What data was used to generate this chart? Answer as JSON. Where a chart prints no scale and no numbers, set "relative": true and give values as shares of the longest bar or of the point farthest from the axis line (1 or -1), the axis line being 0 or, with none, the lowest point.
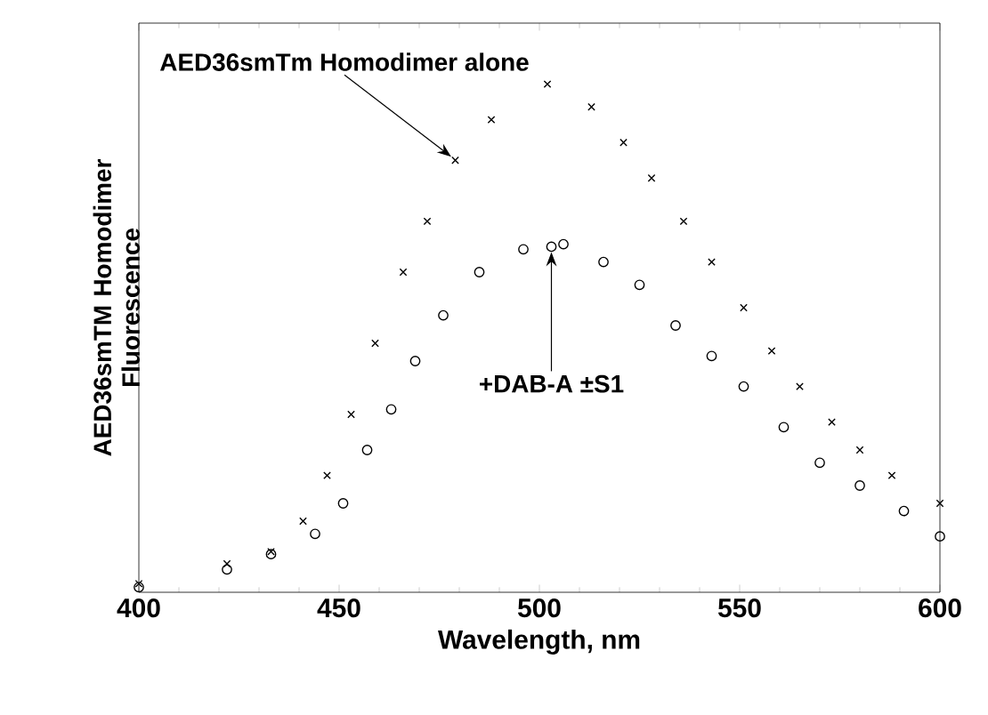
{
  "chart_data": {
    "type": "scatter",
    "xlabel": "Wavelength,  nm",
    "ylabel": "AED36smTM  Homodimer Fluorescence",
    "relative": true,
    "xlim": [
      400,
      600
    ],
    "xticks": [
      400,
      450,
      500,
      550,
      600
    ],
    "series": [
      {
        "name": null,
        "color": "#000000",
        "marker": "cross",
        "x": [
          400,
          422,
          433,
          441,
          447,
          453,
          459,
          466,
          472,
          479,
          488,
          502,
          513,
          521,
          528,
          536,
          543,
          551,
          558,
          565,
          573,
          580,
          588,
          600
        ],
        "values": [
          0.017,
          0.056,
          0.08,
          0.14,
          0.23,
          0.35,
          0.49,
          0.63,
          0.73,
          0.85,
          0.93,
          1.0,
          0.955,
          0.885,
          0.815,
          0.73,
          0.65,
          0.56,
          0.475,
          0.405,
          0.335,
          0.28,
          0.23,
          0.175
        ]
      },
      {
        "name": null,
        "color": "#000000",
        "marker": "circle",
        "x": [
          400,
          422,
          433,
          444,
          451,
          457,
          463,
          469,
          476,
          485,
          496,
          503,
          506,
          516,
          525,
          534,
          543,
          551,
          561,
          570,
          580,
          591,
          600
        ],
        "values": [
          0.01,
          0.045,
          0.075,
          0.115,
          0.175,
          0.28,
          0.36,
          0.455,
          0.545,
          0.63,
          0.675,
          0.68,
          0.685,
          0.65,
          0.605,
          0.525,
          0.465,
          0.405,
          0.325,
          0.255,
          0.21,
          0.16,
          0.11
        ]
      }
    ],
    "annotations": [
      {
        "text": "AED36smTm  Homodimer  alone",
        "x": 478,
        "y": 0.85
      },
      {
        "text": "+DAB-A  ±S1",
        "x": 503,
        "y": 0.68
      }
    ]
  }
}
